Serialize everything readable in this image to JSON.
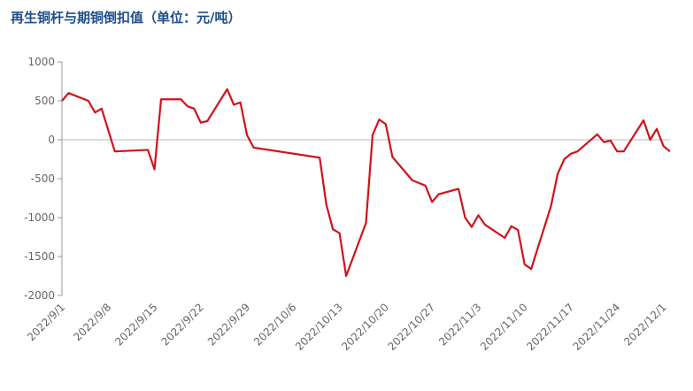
{
  "chart_data": {
    "type": "line",
    "title": "再生铜杆与期铜倒扣值（单位：元/吨）",
    "x": [
      "2022/9/1",
      "2022/9/2",
      "2022/9/5",
      "2022/9/6",
      "2022/9/7",
      "2022/9/9",
      "2022/9/14",
      "2022/9/15",
      "2022/9/16",
      "2022/9/19",
      "2022/9/20",
      "2022/9/21",
      "2022/9/22",
      "2022/9/23",
      "2022/9/26",
      "2022/9/27",
      "2022/9/28",
      "2022/9/29",
      "2022/9/30",
      "2022/10/10",
      "2022/10/11",
      "2022/10/12",
      "2022/10/13",
      "2022/10/14",
      "2022/10/17",
      "2022/10/18",
      "2022/10/19",
      "2022/10/20",
      "2022/10/21",
      "2022/10/24",
      "2022/10/26",
      "2022/10/27",
      "2022/10/28",
      "2022/10/31",
      "2022/11/1",
      "2022/11/2",
      "2022/11/3",
      "2022/11/4",
      "2022/11/7",
      "2022/11/8",
      "2022/11/9",
      "2022/11/10",
      "2022/11/11",
      "2022/11/14",
      "2022/11/15",
      "2022/11/16",
      "2022/11/17",
      "2022/11/18",
      "2022/11/21",
      "2022/11/22",
      "2022/11/23",
      "2022/11/24",
      "2022/11/25",
      "2022/11/28",
      "2022/11/29",
      "2022/11/30",
      "2022/12/1",
      "2022/12/2"
    ],
    "series": [
      {
        "name": "倒扣值",
        "color": "#d0121b",
        "values": [
          500,
          600,
          500,
          350,
          400,
          -150,
          -130,
          -380,
          520,
          520,
          430,
          400,
          220,
          240,
          650,
          450,
          480,
          60,
          -100,
          -230,
          -830,
          -1150,
          -1200,
          -1750,
          -1070,
          60,
          260,
          200,
          -220,
          -520,
          -590,
          -800,
          -700,
          -630,
          -1000,
          -1120,
          -970,
          -1090,
          -1260,
          -1110,
          -1160,
          -1600,
          -1660,
          -850,
          -440,
          -250,
          -180,
          -150,
          70,
          -30,
          -10,
          -150,
          -150,
          250,
          0,
          140,
          -80,
          -150
        ]
      }
    ],
    "xlim": [
      "2022/9/1",
      "2022/12/2"
    ],
    "xticks": [
      "2022/9/1",
      "2022/9/8",
      "2022/9/15",
      "2022/9/22",
      "2022/9/29",
      "2022/10/6",
      "2022/10/13",
      "2022/10/20",
      "2022/10/27",
      "2022/11/3",
      "2022/11/10",
      "2022/11/17",
      "2022/11/24",
      "2022/12/1"
    ],
    "ylim": [
      -2000,
      1000
    ],
    "yticks": [
      1000,
      500,
      0,
      -500,
      -1000,
      -1500,
      -2000
    ]
  }
}
